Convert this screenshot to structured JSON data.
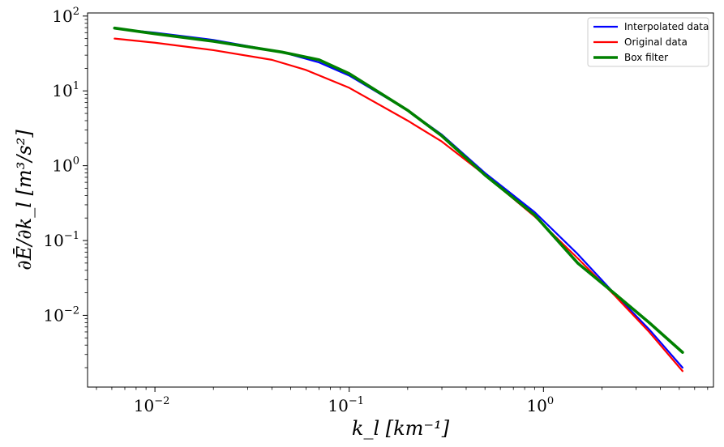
{
  "chart_data": {
    "type": "line",
    "xscale": "log",
    "yscale": "log",
    "xlim": [
      0.0045,
      7.5
    ],
    "ylim": [
      0.0011,
      110
    ],
    "xlabel": "k_l [km⁻¹]",
    "ylabel": "∂Ē/∂k_l [m³/s²]",
    "x_ticks": [
      {
        "value": 0.01,
        "base": "10",
        "exp": "−2"
      },
      {
        "value": 0.1,
        "base": "10",
        "exp": "−1"
      },
      {
        "value": 1,
        "base": "10",
        "exp": "0"
      }
    ],
    "y_ticks": [
      {
        "value": 0.01,
        "base": "10",
        "exp": "−2"
      },
      {
        "value": 0.1,
        "base": "10",
        "exp": "−1"
      },
      {
        "value": 1,
        "base": "10",
        "exp": "0"
      },
      {
        "value": 10,
        "base": "10",
        "exp": "1"
      },
      {
        "value": 100,
        "base": "10",
        "exp": "2"
      }
    ],
    "legend_position": "top-right",
    "grid": false,
    "series": [
      {
        "name": "Interpolated data",
        "color": "#0000ff",
        "width": 2.2,
        "points": [
          [
            0.0062,
            68
          ],
          [
            0.01,
            60
          ],
          [
            0.02,
            48
          ],
          [
            0.045,
            33
          ],
          [
            0.07,
            24
          ],
          [
            0.1,
            16
          ],
          [
            0.2,
            5.5
          ],
          [
            0.3,
            2.6
          ],
          [
            0.5,
            0.8
          ],
          [
            0.9,
            0.24
          ],
          [
            1.5,
            0.066
          ],
          [
            2.3,
            0.02
          ],
          [
            3.5,
            0.0065
          ],
          [
            5.2,
            0.002
          ]
        ]
      },
      {
        "name": "Original data",
        "color": "#ff0000",
        "width": 2.2,
        "points": [
          [
            0.0062,
            50
          ],
          [
            0.01,
            44
          ],
          [
            0.02,
            35
          ],
          [
            0.04,
            26
          ],
          [
            0.06,
            19
          ],
          [
            0.1,
            11
          ],
          [
            0.2,
            4.0
          ],
          [
            0.3,
            2.1
          ],
          [
            0.5,
            0.75
          ],
          [
            0.9,
            0.21
          ],
          [
            1.5,
            0.058
          ],
          [
            2.3,
            0.019
          ],
          [
            3.5,
            0.006
          ],
          [
            5.2,
            0.0018
          ]
        ]
      },
      {
        "name": "Box filter",
        "color": "#008000",
        "width": 3.6,
        "points": [
          [
            0.0062,
            69
          ],
          [
            0.01,
            58
          ],
          [
            0.02,
            46
          ],
          [
            0.045,
            33
          ],
          [
            0.07,
            26
          ],
          [
            0.1,
            17
          ],
          [
            0.2,
            5.5
          ],
          [
            0.3,
            2.5
          ],
          [
            0.5,
            0.75
          ],
          [
            0.9,
            0.22
          ],
          [
            1.5,
            0.05
          ],
          [
            2.3,
            0.02
          ],
          [
            3.5,
            0.008
          ],
          [
            5.2,
            0.0032
          ]
        ]
      }
    ]
  }
}
